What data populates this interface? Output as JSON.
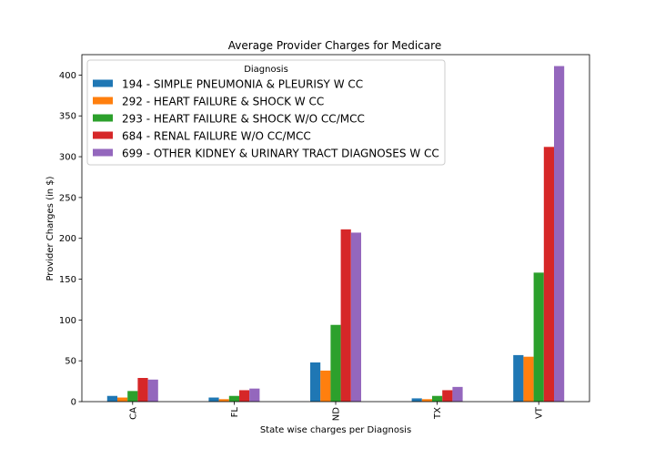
{
  "chart_data": {
    "type": "bar",
    "title": "Average Provider Charges for Medicare",
    "xlabel": "State wise charges per Diagnosis",
    "ylabel": "Provider Charges (in $)",
    "ylim": [
      0,
      425
    ],
    "yticks": [
      0,
      50,
      100,
      150,
      200,
      250,
      300,
      350,
      400
    ],
    "categories": [
      "CA",
      "FL",
      "ND",
      "TX",
      "VT"
    ],
    "grid": false,
    "legend": {
      "title": "Diagnosis",
      "placement": "upper-left"
    },
    "series": [
      {
        "name": "194 - SIMPLE PNEUMONIA & PLEURISY W CC",
        "color": "#1f77b4",
        "values": [
          7,
          5,
          48,
          4,
          57
        ]
      },
      {
        "name": "292 - HEART FAILURE & SHOCK W CC",
        "color": "#ff7f0e",
        "values": [
          5,
          3,
          38,
          3,
          55
        ]
      },
      {
        "name": "293 - HEART FAILURE & SHOCK W/O CC/MCC",
        "color": "#2ca02c",
        "values": [
          13,
          7,
          94,
          7,
          158
        ]
      },
      {
        "name": "684 - RENAL FAILURE W/O CC/MCC",
        "color": "#d62728",
        "values": [
          29,
          14,
          211,
          14,
          312
        ]
      },
      {
        "name": "699 - OTHER KIDNEY & URINARY TRACT DIAGNOSES W CC",
        "color": "#9467bd",
        "values": [
          27,
          16,
          207,
          18,
          411
        ]
      }
    ]
  }
}
